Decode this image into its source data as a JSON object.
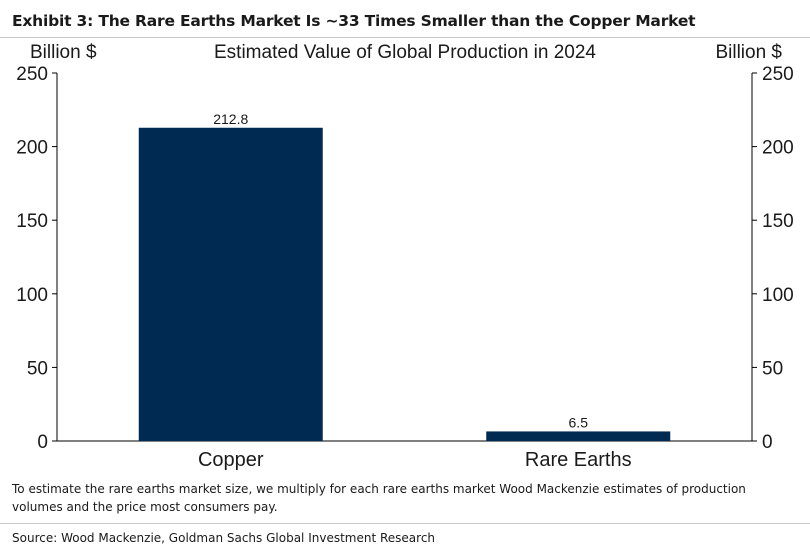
{
  "exhibit_title": "Exhibit 3: The Rare Earths Market Is ~33 Times Smaller than the Copper Market",
  "note": "To estimate the rare earths market size, we multiply for each rare earths market Wood Mackenzie estimates of production volumes and the price most consumers pay.",
  "source": "Source: Wood Mackenzie, Goldman Sachs Global Investment Research",
  "colors": {
    "bar": "#002a52",
    "axis": "#000000"
  },
  "chart_data": {
    "type": "bar",
    "title": "Estimated Value of Global Production in 2024",
    "ylabel_left": "Billion $",
    "ylabel_right": "Billion $",
    "categories": [
      "Copper",
      "Rare Earths"
    ],
    "values": [
      212.8,
      6.5
    ],
    "data_labels": [
      "212.8",
      "6.5"
    ],
    "ylim": [
      0,
      250
    ],
    "yticks": [
      0,
      50,
      100,
      150,
      200,
      250
    ],
    "ytick_labels": [
      "0",
      "50",
      "100",
      "150",
      "200",
      "250"
    ],
    "grid": false,
    "legend": "none"
  }
}
